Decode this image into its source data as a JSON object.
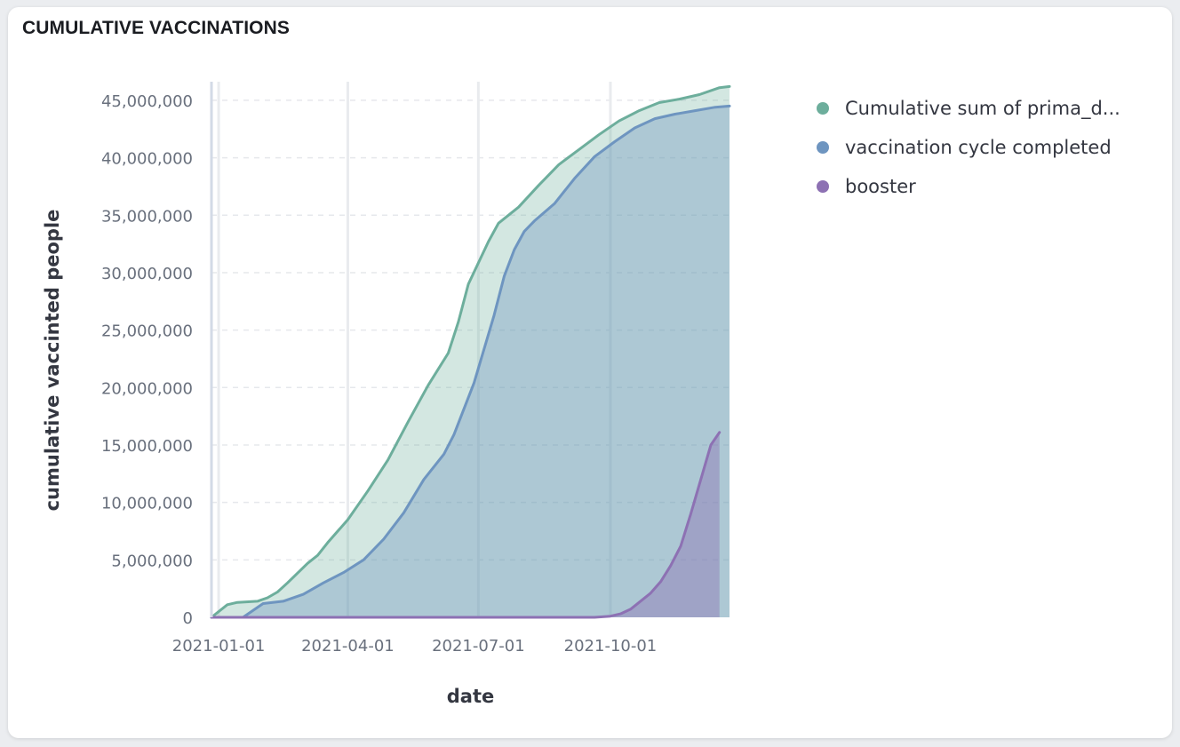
{
  "panel": {
    "title": "CUMULATIVE VACCINATIONS"
  },
  "legend": [
    {
      "label": "Cumulative sum of prima_d...",
      "color": "#6dae9c"
    },
    {
      "label": "vaccination cycle completed",
      "color": "#6e95c0"
    },
    {
      "label": "booster",
      "color": "#8d71b3"
    }
  ],
  "chart_data": {
    "type": "area",
    "xlabel": "date",
    "ylabel": "cumulative vaccinted people",
    "xlim": [
      "2020-12-27",
      "2021-12-23"
    ],
    "ylim": [
      0,
      46000000
    ],
    "x_ticks": [
      "2021-01-01",
      "2021-04-01",
      "2021-07-01",
      "2021-10-01"
    ],
    "y_ticks": [
      0,
      5000000,
      10000000,
      15000000,
      20000000,
      25000000,
      30000000,
      35000000,
      40000000,
      45000000
    ],
    "y_tick_labels": [
      "0",
      "5,000,000",
      "10,000,000",
      "15,000,000",
      "20,000,000",
      "25,000,000",
      "30,000,000",
      "35,000,000",
      "40,000,000",
      "45,000,000"
    ],
    "grid": {
      "x": true,
      "y": true
    },
    "legend_position": "right",
    "series": [
      {
        "name": "Cumulative sum of prima_d...",
        "color": "#6dae9c",
        "points": [
          [
            "2020-12-27",
            0
          ],
          [
            "2021-01-07",
            1100000
          ],
          [
            "2021-01-14",
            1300000
          ],
          [
            "2021-01-28",
            1400000
          ],
          [
            "2021-02-04",
            1700000
          ],
          [
            "2021-02-11",
            2200000
          ],
          [
            "2021-02-18",
            3000000
          ],
          [
            "2021-03-04",
            4700000
          ],
          [
            "2021-03-11",
            5400000
          ],
          [
            "2021-03-18",
            6500000
          ],
          [
            "2021-04-01",
            8500000
          ],
          [
            "2021-04-15",
            11000000
          ],
          [
            "2021-04-29",
            13700000
          ],
          [
            "2021-05-13",
            17000000
          ],
          [
            "2021-05-27",
            20200000
          ],
          [
            "2021-06-10",
            23000000
          ],
          [
            "2021-06-17",
            25700000
          ],
          [
            "2021-06-24",
            29000000
          ],
          [
            "2021-07-08",
            32700000
          ],
          [
            "2021-07-15",
            34300000
          ],
          [
            "2021-07-29",
            35700000
          ],
          [
            "2021-08-12",
            37600000
          ],
          [
            "2021-08-26",
            39400000
          ],
          [
            "2021-09-09",
            40700000
          ],
          [
            "2021-09-23",
            42000000
          ],
          [
            "2021-10-07",
            43200000
          ],
          [
            "2021-10-21",
            44100000
          ],
          [
            "2021-11-04",
            44800000
          ],
          [
            "2021-11-18",
            45100000
          ],
          [
            "2021-12-02",
            45500000
          ],
          [
            "2021-12-16",
            46100000
          ],
          [
            "2021-12-23",
            46200000
          ]
        ]
      },
      {
        "name": "vaccination cycle completed",
        "color": "#6e95c0",
        "points": [
          [
            "2020-12-27",
            0
          ],
          [
            "2021-01-18",
            0
          ],
          [
            "2021-02-01",
            1200000
          ],
          [
            "2021-02-15",
            1400000
          ],
          [
            "2021-03-01",
            2000000
          ],
          [
            "2021-03-15",
            3000000
          ],
          [
            "2021-03-29",
            3900000
          ],
          [
            "2021-04-12",
            5000000
          ],
          [
            "2021-04-26",
            6800000
          ],
          [
            "2021-05-10",
            9100000
          ],
          [
            "2021-05-24",
            12000000
          ],
          [
            "2021-06-07",
            14200000
          ],
          [
            "2021-06-14",
            15900000
          ],
          [
            "2021-06-28",
            20400000
          ],
          [
            "2021-07-12",
            26300000
          ],
          [
            "2021-07-19",
            29700000
          ],
          [
            "2021-07-26",
            32000000
          ],
          [
            "2021-08-02",
            33600000
          ],
          [
            "2021-08-09",
            34500000
          ],
          [
            "2021-08-23",
            36000000
          ],
          [
            "2021-09-06",
            38200000
          ],
          [
            "2021-09-20",
            40100000
          ],
          [
            "2021-10-04",
            41400000
          ],
          [
            "2021-10-18",
            42600000
          ],
          [
            "2021-11-01",
            43400000
          ],
          [
            "2021-11-15",
            43800000
          ],
          [
            "2021-11-29",
            44100000
          ],
          [
            "2021-12-13",
            44400000
          ],
          [
            "2021-12-23",
            44500000
          ]
        ]
      },
      {
        "name": "booster",
        "color": "#8d71b3",
        "points": [
          [
            "2020-12-27",
            0
          ],
          [
            "2021-09-20",
            0
          ],
          [
            "2021-10-01",
            100000
          ],
          [
            "2021-10-08",
            300000
          ],
          [
            "2021-10-15",
            700000
          ],
          [
            "2021-10-29",
            2100000
          ],
          [
            "2021-11-05",
            3100000
          ],
          [
            "2021-11-12",
            4500000
          ],
          [
            "2021-11-19",
            6200000
          ],
          [
            "2021-11-26",
            9000000
          ],
          [
            "2021-12-03",
            12000000
          ],
          [
            "2021-12-10",
            15000000
          ],
          [
            "2021-12-16",
            16100000
          ]
        ]
      }
    ]
  }
}
